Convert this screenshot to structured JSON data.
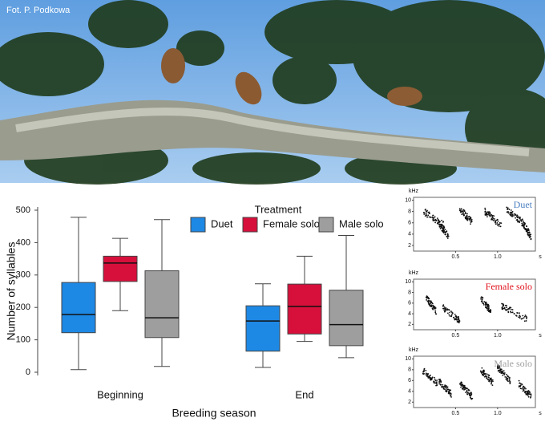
{
  "photo_credit": "Fot. P. Podkowa",
  "chart_data": {
    "type": "box",
    "legend_title": "Treatment",
    "x_label": "Breeding season",
    "y_label": "Number of syllables",
    "categories": [
      "Beginning",
      "End"
    ],
    "ylim": [
      0,
      500
    ],
    "yticks": [
      0,
      100,
      200,
      300,
      400,
      500
    ],
    "series": [
      {
        "name": "Duet",
        "color": "#1e88e5",
        "values": [
          {
            "min": 8,
            "q1": 122,
            "median": 178,
            "q3": 277,
            "max": 478
          },
          {
            "min": 15,
            "q1": 65,
            "median": 158,
            "q3": 205,
            "max": 273
          }
        ]
      },
      {
        "name": "Female solo",
        "color": "#d6103b",
        "values": [
          {
            "min": 190,
            "q1": 280,
            "median": 337,
            "q3": 358,
            "max": 413
          },
          {
            "min": 95,
            "q1": 118,
            "median": 203,
            "q3": 272,
            "max": 358
          }
        ]
      },
      {
        "name": "Male solo",
        "color": "#9e9e9e",
        "values": [
          {
            "min": 18,
            "q1": 107,
            "median": 168,
            "q3": 313,
            "max": 471
          },
          {
            "min": 45,
            "q1": 82,
            "median": 147,
            "q3": 253,
            "max": 422
          }
        ]
      }
    ]
  },
  "spectrograms": [
    {
      "label": "Duet",
      "color": "#4a7fc1",
      "y_label": "kHz",
      "x_label": "s",
      "ylim": [
        1,
        10.5
      ],
      "yticks": [
        2,
        4,
        6,
        8,
        10
      ],
      "xlim": [
        0,
        1.45
      ],
      "xticks": [
        0.5,
        {
          "value": 1,
          "label": "1.0"
        }
      ]
    },
    {
      "label": "Female solo",
      "color": "#e0101a",
      "y_label": "kHz",
      "x_label": "s",
      "ylim": [
        1,
        10.5
      ],
      "yticks": [
        2,
        4,
        6,
        8,
        10
      ],
      "xlim": [
        0,
        1.45
      ],
      "xticks": [
        0.5,
        {
          "value": 1,
          "label": "1.0"
        }
      ]
    },
    {
      "label": "Male solo",
      "color": "#a0a0a0",
      "y_label": "kHz",
      "x_label": "s",
      "ylim": [
        1,
        10.5
      ],
      "yticks": [
        2,
        4,
        6,
        8,
        10
      ],
      "xlim": [
        0,
        1.45
      ],
      "xticks": [
        0.5,
        {
          "value": 1,
          "label": "1.0"
        }
      ]
    }
  ]
}
